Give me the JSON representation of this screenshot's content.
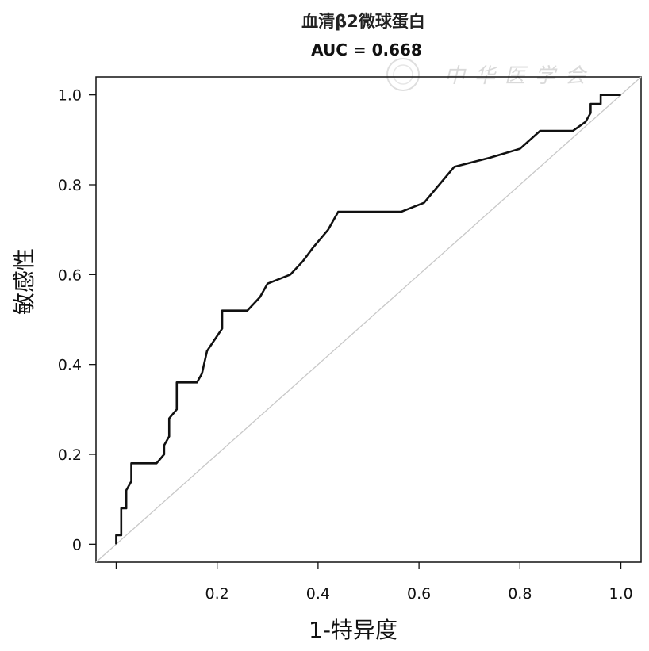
{
  "chart_data": {
    "type": "line",
    "title": "血清β2微球蛋白",
    "subtitle": "AUC = 0.668",
    "xlabel": "1-特异度",
    "ylabel": "敏感性",
    "xlim": [
      -0.04,
      1.04
    ],
    "ylim": [
      -0.04,
      1.04
    ],
    "x_ticks": [
      0.2,
      0.4,
      0.6,
      0.8,
      1.0
    ],
    "x_tick_labels": [
      "0.2",
      "0.4",
      "0.6",
      "0.8",
      "1.0"
    ],
    "y_ticks": [
      0,
      0.2,
      0.4,
      0.6,
      0.8,
      1.0
    ],
    "y_tick_labels": [
      "0",
      "0.2",
      "0.4",
      "0.6",
      "0.8",
      "1.0"
    ],
    "grid": false,
    "legend": "none",
    "series": [
      {
        "style": "roc-curve",
        "color": "#111111",
        "x": [
          0.0,
          0.0,
          0.01,
          0.01,
          0.02,
          0.02,
          0.03,
          0.03,
          0.04,
          0.08,
          0.095,
          0.095,
          0.105,
          0.105,
          0.12,
          0.12,
          0.16,
          0.17,
          0.18,
          0.195,
          0.21,
          0.21,
          0.26,
          0.285,
          0.3,
          0.345,
          0.37,
          0.39,
          0.42,
          0.44,
          0.46,
          0.565,
          0.61,
          0.64,
          0.67,
          0.74,
          0.8,
          0.84,
          0.9,
          0.905,
          0.93,
          0.93,
          0.94,
          0.94,
          0.96,
          0.96,
          0.98,
          1.0
        ],
        "y": [
          0.0,
          0.02,
          0.02,
          0.08,
          0.08,
          0.12,
          0.14,
          0.18,
          0.18,
          0.18,
          0.2,
          0.22,
          0.24,
          0.28,
          0.3,
          0.36,
          0.36,
          0.38,
          0.43,
          0.455,
          0.48,
          0.52,
          0.52,
          0.55,
          0.58,
          0.6,
          0.63,
          0.66,
          0.7,
          0.74,
          0.74,
          0.74,
          0.76,
          0.8,
          0.84,
          0.86,
          0.88,
          0.92,
          0.92,
          0.92,
          0.94,
          0.94,
          0.96,
          0.98,
          0.98,
          1.0,
          1.0,
          1.0
        ]
      },
      {
        "style": "reference-diagonal",
        "color": "#c8c8c8",
        "x": [
          -0.04,
          1.04
        ],
        "y": [
          -0.04,
          1.04
        ]
      }
    ],
    "watermark": "中华医学会"
  }
}
